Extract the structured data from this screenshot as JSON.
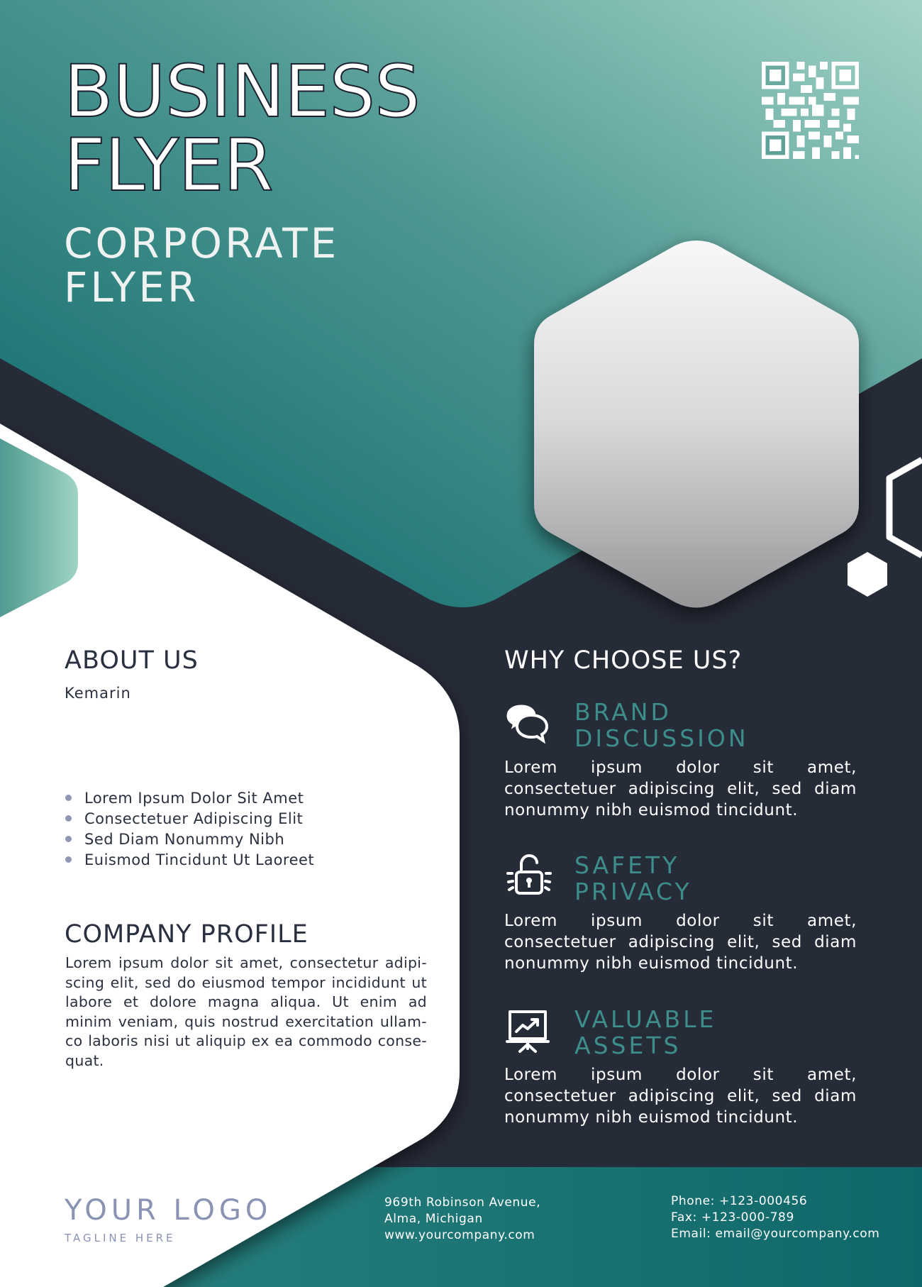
{
  "header": {
    "title_line1": "BUSINESS",
    "title_line2": "FLYER",
    "subtitle_line1": "CORPORATE",
    "subtitle_line2": "FLYER"
  },
  "about": {
    "heading": "ABOUT US",
    "subheading": "Kemarin",
    "bullets": [
      "Lorem Ipsum Dolor Sit Amet",
      "Consectetuer Adipiscing Elit",
      "Sed Diam Nonummy Nibh",
      "Euismod Tincidunt Ut Laoreet"
    ]
  },
  "profile": {
    "heading": "COMPANY PROFILE",
    "body": "Lorem ipsum dolor sit amet, consectetur adipi-scing elit, sed do eiusmod tempor incididunt ut labore et dolore magna aliqua. Ut enim ad minim veniam, quis nostrud exercitation ullam-co laboris nisi ut aliquip ex ea commodo conse-quat."
  },
  "why": {
    "heading": "WHY CHOOSE US?",
    "features": [
      {
        "title_line1": "BRAND",
        "title_line2": "DISCUSSION",
        "icon": "chat-bubbles-icon",
        "body": "Lorem ipsum dolor sit amet, consectetuer adipiscing elit, sed diam nonummy nibh euismod tincidunt."
      },
      {
        "title_line1": "SAFETY",
        "title_line2": "PRIVACY",
        "icon": "padlock-icon",
        "body": "Lorem ipsum dolor sit amet, consectetuer adipiscing elit, sed diam nonummy nibh euismod tincidunt."
      },
      {
        "title_line1": "VALUABLE",
        "title_line2": "ASSETS",
        "icon": "presentation-board-icon",
        "body": "Lorem ipsum dolor sit amet, consectetuer adipiscing elit, sed diam nonummy nibh euismod tincidunt."
      }
    ]
  },
  "footer": {
    "logo": "YOUR LOGO",
    "tagline": "TAGLINE HERE",
    "address_line1": "969th  Robinson Avenue,",
    "address_line2": "Alma, Michigan",
    "address_line3": "www.yourcompany.com",
    "phone": "Phone: +123-000456",
    "fax": "Fax: +123-000-789",
    "email": "Email: email@yourcompany.com"
  },
  "colors": {
    "teal_dark": "#10706e",
    "teal_light": "#95cbbf",
    "navy": "#262b38",
    "accent_text": "#3d8d8a",
    "logo_gray": "#8a93b3"
  }
}
